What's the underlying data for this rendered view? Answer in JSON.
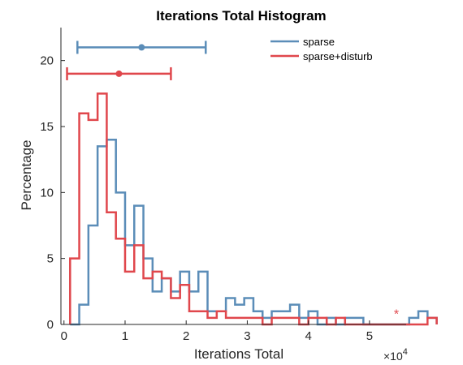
{
  "chart_data": {
    "type": "histogram",
    "title": "Iterations Total Histogram",
    "xlabel": "Iterations Total",
    "ylabel": "Percentage",
    "x_multiplier_label": "×10",
    "x_multiplier_exp": "4",
    "xlim": [
      -0.05,
      5.6
    ],
    "ylim": [
      0,
      22.5
    ],
    "x_ticks": [
      0,
      1,
      2,
      3,
      4,
      5
    ],
    "x_tick_labels": [
      "0",
      "1",
      "2",
      "3",
      "4",
      "5"
    ],
    "y_ticks": [
      0,
      5,
      10,
      15,
      20
    ],
    "y_tick_labels": [
      "0",
      "5",
      "10",
      "15",
      "20"
    ],
    "grid": false,
    "legend_position": "top-right",
    "bin_start": 0.1,
    "bin_width": 0.15,
    "series": [
      {
        "name": "sparse",
        "color": "#5b8db8",
        "values": [
          0,
          1.5,
          7.5,
          13.5,
          14,
          10,
          6,
          9,
          5,
          2.5,
          3.5,
          2.5,
          4,
          2.5,
          4,
          1,
          1,
          2,
          1.5,
          2,
          1,
          0.5,
          1,
          1,
          1.5,
          0.5,
          1,
          0,
          0.5,
          0,
          0.5,
          0.5,
          0,
          0,
          0,
          0,
          0,
          0.5,
          1,
          0.5
        ],
        "errorbar": {
          "mean": 1.27,
          "low": 0.22,
          "high": 2.32,
          "y": 21
        }
      },
      {
        "name": "sparse+disturb",
        "color": "#e0474c",
        "values": [
          5,
          16,
          15.5,
          17.5,
          8.5,
          6.5,
          4,
          6,
          3.5,
          4,
          3.5,
          2,
          3,
          1,
          1,
          0.5,
          1,
          0.5,
          0.5,
          0.5,
          0.5,
          0,
          0.5,
          0.5,
          0.5,
          0,
          0.5,
          0.5,
          0,
          0.5,
          0,
          0,
          0,
          0,
          0,
          0,
          0,
          0,
          0,
          0.5
        ],
        "errorbar": {
          "mean": 0.9,
          "low": 0.05,
          "high": 1.75,
          "y": 19
        }
      }
    ],
    "outlier_marker": {
      "x": 5.44,
      "y": 0.9,
      "symbol": "*",
      "color": "#e0474c"
    }
  }
}
